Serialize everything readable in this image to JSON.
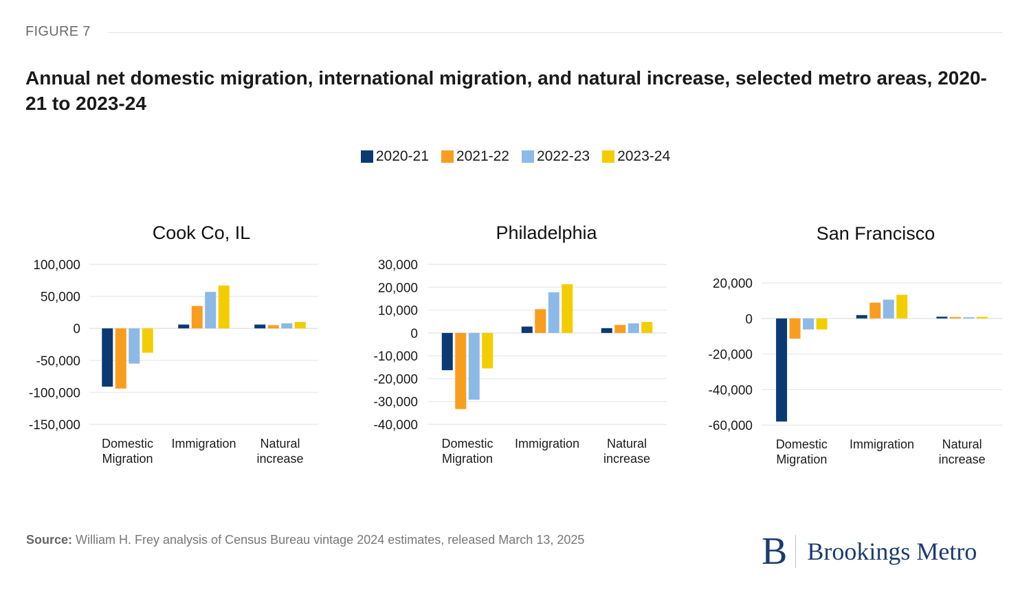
{
  "figure_label": "FIGURE 7",
  "title": "Annual net domestic migration, international migration, and natural increase, selected metro areas, 2020-21 to 2023-24",
  "legend": [
    {
      "label": "2020-21",
      "color": "#0b3a73"
    },
    {
      "label": "2021-22",
      "color": "#f99d1f"
    },
    {
      "label": "2022-23",
      "color": "#8db9e6"
    },
    {
      "label": "2023-24",
      "color": "#f2cd00"
    }
  ],
  "source_label": "Source:",
  "source_text": " William H. Frey analysis of Census Bureau vintage 2024 estimates, released March 13, 2025",
  "logo": {
    "mark": "B",
    "text": "Brookings Metro",
    "color": "#1c3b6f"
  },
  "chart_data": [
    {
      "type": "bar",
      "title": "Cook Co, IL",
      "categories": [
        "Domestic Migration",
        "Immigration",
        "Natural increase"
      ],
      "category_lines": [
        [
          "Domestic",
          "Migration"
        ],
        [
          "Immigration"
        ],
        [
          "Natural",
          "increase"
        ]
      ],
      "ylim": [
        -150000,
        100000
      ],
      "yticks": [
        100000,
        50000,
        0,
        -50000,
        -100000,
        -150000
      ],
      "ytick_labels": [
        "100,000",
        "50,000",
        "0",
        "-50,000",
        "-100,000",
        "-150,000"
      ],
      "grid": true,
      "series": [
        {
          "name": "2020-21",
          "values": [
            -91000,
            6000,
            6000
          ]
        },
        {
          "name": "2021-22",
          "values": [
            -94000,
            35000,
            5000
          ]
        },
        {
          "name": "2022-23",
          "values": [
            -55000,
            57000,
            8000
          ]
        },
        {
          "name": "2023-24",
          "values": [
            -38000,
            67000,
            10000
          ]
        }
      ]
    },
    {
      "type": "bar",
      "title": "Philadelphia",
      "categories": [
        "Domestic Migration",
        "Immigration",
        "Natural increase"
      ],
      "category_lines": [
        [
          "Domestic",
          "Migration"
        ],
        [
          "Immigration"
        ],
        [
          "Natural",
          "increase"
        ]
      ],
      "ylim": [
        -40000,
        30000
      ],
      "yticks": [
        30000,
        20000,
        10000,
        0,
        -10000,
        -20000,
        -30000,
        -40000
      ],
      "ytick_labels": [
        "30,000",
        "20,000",
        "10,000",
        "0",
        "-10,000",
        "-20,000",
        "-30,000",
        "-40,000"
      ],
      "grid": true,
      "series": [
        {
          "name": "2020-21",
          "values": [
            -16300,
            2800,
            2100
          ]
        },
        {
          "name": "2021-22",
          "values": [
            -33300,
            10400,
            3500
          ]
        },
        {
          "name": "2022-23",
          "values": [
            -29200,
            17800,
            4200
          ]
        },
        {
          "name": "2023-24",
          "values": [
            -15500,
            21300,
            4800
          ]
        }
      ]
    },
    {
      "type": "bar",
      "title": "San Francisco",
      "categories": [
        "Domestic Migration",
        "Immigration",
        "Natural increase"
      ],
      "category_lines": [
        [
          "Domestic",
          "Migration"
        ],
        [
          "Immigration"
        ],
        [
          "Natural",
          "increase"
        ]
      ],
      "ylim": [
        -60000,
        20000
      ],
      "yticks": [
        20000,
        0,
        -20000,
        -40000,
        -60000
      ],
      "ytick_labels": [
        "20,000",
        "0",
        "-20,000",
        "-40,000",
        "-60,000"
      ],
      "grid": true,
      "series": [
        {
          "name": "2020-21",
          "values": [
            -58000,
            1900,
            1000
          ]
        },
        {
          "name": "2021-22",
          "values": [
            -11400,
            8900,
            800
          ]
        },
        {
          "name": "2022-23",
          "values": [
            -6200,
            10600,
            700
          ]
        },
        {
          "name": "2023-24",
          "values": [
            -6200,
            13300,
            900
          ]
        }
      ]
    }
  ]
}
